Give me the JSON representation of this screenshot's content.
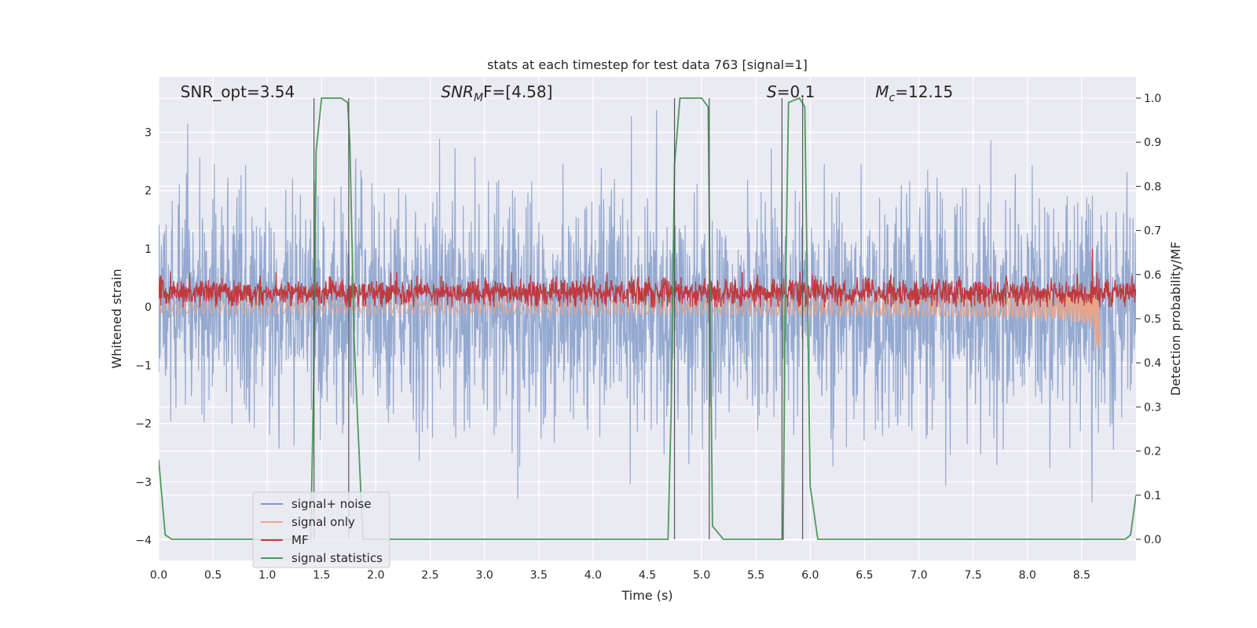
{
  "chart_data": {
    "type": "line",
    "title": "stats at each timestep for test data 763 [signal=1]",
    "xlabel": "Time (s)",
    "ylabel_left": "Whitened strain",
    "ylabel_right": "Detection probability/MF",
    "xlim": [
      0.0,
      9.0
    ],
    "ylim_left": [
      -4.35,
      3.95
    ],
    "ylim_right": [
      -0.048,
      1.048
    ],
    "x_ticks": [
      0.0,
      0.5,
      1.0,
      1.5,
      2.0,
      2.5,
      3.0,
      3.5,
      4.0,
      4.5,
      5.0,
      5.5,
      6.0,
      6.5,
      7.0,
      7.5,
      8.0,
      8.5
    ],
    "x_tick_labels": [
      "0.0",
      "0.5",
      "1.0",
      "1.5",
      "2.0",
      "2.5",
      "3.0",
      "3.5",
      "4.0",
      "4.5",
      "5.0",
      "5.5",
      "6.0",
      "6.5",
      "7.0",
      "7.5",
      "8.0",
      "8.5"
    ],
    "y_left_ticks": [
      -4,
      -3,
      -2,
      -1,
      0,
      1,
      2,
      3
    ],
    "y_left_tick_labels": [
      "−4",
      "−3",
      "−2",
      "−1",
      "0",
      "1",
      "2",
      "3"
    ],
    "y_right_ticks": [
      0.0,
      0.1,
      0.2,
      0.3,
      0.4,
      0.5,
      0.6,
      0.7,
      0.8,
      0.9,
      1.0
    ],
    "y_right_tick_labels": [
      "0.0",
      "0.1",
      "0.2",
      "0.3",
      "0.4",
      "0.5",
      "0.6",
      "0.7",
      "0.8",
      "0.9",
      "1.0"
    ],
    "grid": true,
    "annotations": [
      {
        "pre": "SNR_opt=3.54",
        "it": "",
        "sub": "",
        "post": "",
        "t": 0.2
      },
      {
        "pre": "",
        "it": "SNR",
        "sub": "M",
        "post": "F=[4.58]",
        "t": 2.6
      },
      {
        "pre": "",
        "it": "S",
        "sub": "",
        "post": "=0.1",
        "t": 5.6
      },
      {
        "pre": "",
        "it": "M",
        "sub": "c",
        "post": "=12.15",
        "t": 6.6
      }
    ],
    "legend": {
      "placement": "lower-left",
      "entries": [
        {
          "label": "signal+ noise",
          "color": "#7f98c8"
        },
        {
          "label": "signal only",
          "color": "#e8a58a"
        },
        {
          "label": "MF",
          "color": "#c03a3f"
        },
        {
          "label": "signal statistics",
          "color": "#4c9a5a"
        }
      ]
    },
    "series": [
      {
        "name": "signal+ noise",
        "color": "#8fa5cd",
        "axis": "left",
        "kind": "noise",
        "sigma": 1.0,
        "extreme": 3.5
      },
      {
        "name": "signal only",
        "color": "#e8a58a",
        "axis": "left",
        "kind": "chirp",
        "t_end": 8.67,
        "peak": [
          -0.7,
          0.25
        ]
      },
      {
        "name": "MF",
        "color": "#c0393e",
        "axis": "left",
        "kind": "band",
        "mean": 0.25,
        "range": [
          0.0,
          0.6
        ]
      },
      {
        "name": "signal statistics",
        "color": "#4c9a5a",
        "axis": "right",
        "kind": "line",
        "x": [
          0.0,
          0.06,
          0.12,
          0.5,
          1.0,
          1.4,
          1.43,
          1.45,
          1.5,
          1.68,
          1.74,
          1.76,
          1.8,
          1.88,
          2.5,
          4.69,
          4.72,
          4.75,
          4.8,
          5.0,
          5.06,
          5.1,
          5.2,
          5.75,
          5.77,
          5.8,
          5.9,
          5.95,
          6.0,
          6.07,
          7.0,
          8.9,
          8.95,
          9.0
        ],
        "y": [
          0.18,
          0.01,
          0.0,
          0.0,
          0.0,
          0.0,
          0.4,
          0.88,
          1.0,
          1.0,
          0.99,
          0.9,
          0.45,
          0.0,
          0.0,
          0.0,
          0.3,
          0.85,
          1.0,
          1.0,
          0.98,
          0.03,
          0.0,
          0.0,
          0.52,
          0.99,
          1.0,
          0.98,
          0.12,
          0.0,
          0.0,
          0.0,
          0.01,
          0.1
        ]
      }
    ],
    "vlines": [
      1.43,
      1.75,
      4.75,
      5.07,
      5.74,
      5.93
    ]
  }
}
